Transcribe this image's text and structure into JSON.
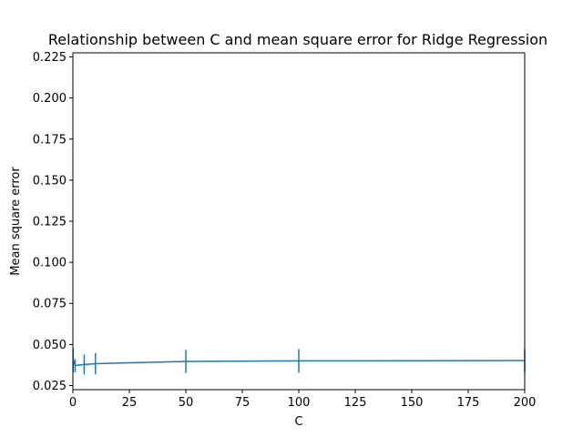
{
  "chart_data": {
    "type": "line",
    "title": "Relationship between C and mean square error for Ridge Regression",
    "xlabel": "C",
    "ylabel": "Mean square error",
    "xlim": [
      0,
      200
    ],
    "ylim": [
      0.0225,
      0.2275
    ],
    "xticks": [
      0,
      25,
      50,
      75,
      100,
      125,
      150,
      175,
      200
    ],
    "xtick_labels": [
      "0",
      "25",
      "50",
      "75",
      "100",
      "125",
      "150",
      "175",
      "200"
    ],
    "yticks": [
      0.025,
      0.05,
      0.075,
      0.1,
      0.125,
      0.15,
      0.175,
      0.2,
      0.225
    ],
    "ytick_labels": [
      "0.025",
      "0.050",
      "0.075",
      "0.100",
      "0.125",
      "0.150",
      "0.175",
      "0.200",
      "0.225"
    ],
    "grid": false,
    "series": [
      {
        "color": "#1f77b4",
        "x": [
          0.1,
          1,
          5,
          10,
          50,
          100,
          200
        ],
        "y": [
          0.0405,
          0.0372,
          0.0378,
          0.0383,
          0.0397,
          0.04,
          0.0402
        ],
        "yerr": [
          0.0075,
          0.004,
          0.006,
          0.0065,
          0.007,
          0.0072,
          0.0072
        ]
      }
    ]
  }
}
